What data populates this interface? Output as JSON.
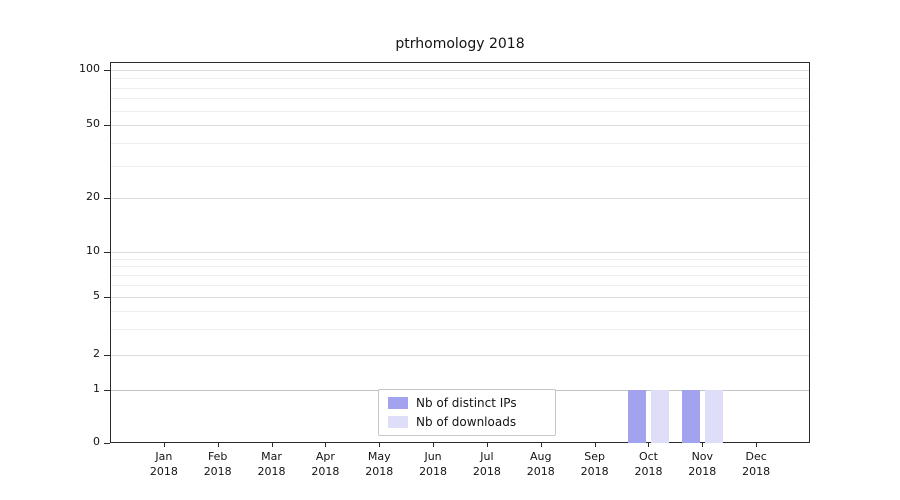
{
  "chart_data": {
    "type": "bar",
    "title": "ptrhomology 2018",
    "categories": [
      "Jan",
      "Feb",
      "Mar",
      "Apr",
      "May",
      "Jun",
      "Jul",
      "Aug",
      "Sep",
      "Oct",
      "Nov",
      "Dec"
    ],
    "year": "2018",
    "series": [
      {
        "name": "Nb of distinct IPs",
        "color": "#a2a2ef",
        "values": [
          0,
          0,
          0,
          0,
          0,
          0,
          0,
          0,
          0,
          1,
          1,
          0
        ]
      },
      {
        "name": "Nb of downloads",
        "color": "#dedef9",
        "values": [
          0,
          0,
          0,
          0,
          0,
          0,
          0,
          0,
          0,
          1,
          1,
          0
        ]
      }
    ],
    "xlabel": "",
    "ylabel": "",
    "yticks": [
      0,
      1,
      2,
      5,
      10,
      20,
      50,
      100
    ],
    "ylim": [
      0,
      100
    ],
    "scale": "symlog",
    "grid": true,
    "legend_position": "lower center"
  }
}
